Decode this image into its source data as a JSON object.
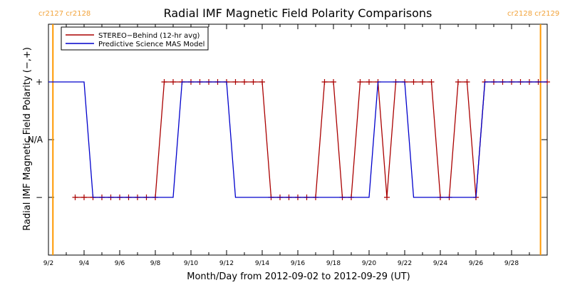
{
  "chart_data": {
    "type": "line",
    "title": "Radial IMF Magnetic Field Polarity Comparisons",
    "xlabel": "Month/Day from 2012-09-02 to 2012-09-29 (UT)",
    "ylabel": "Radial IMF Magnetic Field Polarity (−,+)",
    "x_unit": "days",
    "xlim": [
      "2012-09-02T00:00",
      "2012-09-29T24:00"
    ],
    "x_ticks": [
      {
        "at": "2012-09-02",
        "label": "9/2"
      },
      {
        "at": "2012-09-04",
        "label": "9/4"
      },
      {
        "at": "2012-09-06",
        "label": "9/6"
      },
      {
        "at": "2012-09-08",
        "label": "9/8"
      },
      {
        "at": "2012-09-10",
        "label": "9/10"
      },
      {
        "at": "2012-09-12",
        "label": "9/12"
      },
      {
        "at": "2012-09-14",
        "label": "9/14"
      },
      {
        "at": "2012-09-16",
        "label": "9/16"
      },
      {
        "at": "2012-09-18",
        "label": "9/18"
      },
      {
        "at": "2012-09-20",
        "label": "9/20"
      },
      {
        "at": "2012-09-22",
        "label": "9/22"
      },
      {
        "at": "2012-09-24",
        "label": "9/24"
      },
      {
        "at": "2012-09-26",
        "label": "9/26"
      },
      {
        "at": "2012-09-28",
        "label": "9/28"
      }
    ],
    "y_ticks": [
      {
        "value": 1,
        "label": "+"
      },
      {
        "value": 0,
        "label": "N/A"
      },
      {
        "value": -1,
        "label": "−"
      }
    ],
    "ylim": [
      -2,
      2
    ],
    "legend_position": "top-left",
    "carrington_markers": [
      {
        "at": "2012-09-02T06:00",
        "labels": [
          "cr2127",
          "cr2128"
        ]
      },
      {
        "at": "2012-09-29T15:00",
        "labels": [
          "cr2128",
          "cr2129"
        ]
      }
    ],
    "colors": {
      "stereo": "#aa0000",
      "mas": "#0000cc",
      "markers": "#ff9900",
      "marker_text": "#f2a33a",
      "frame": "#000000"
    },
    "series": [
      {
        "name": "STEREO−Behind (12-hr avg)",
        "color": "#aa0000",
        "marker": "plus",
        "x": [
          "2012-09-03T12:00",
          "2012-09-04T00:00",
          "2012-09-04T12:00",
          "2012-09-05T00:00",
          "2012-09-05T12:00",
          "2012-09-06T00:00",
          "2012-09-06T12:00",
          "2012-09-07T00:00",
          "2012-09-07T12:00",
          "2012-09-08T00:00",
          "2012-09-08T12:00",
          "2012-09-09T00:00",
          "2012-09-09T12:00",
          "2012-09-10T00:00",
          "2012-09-10T12:00",
          "2012-09-11T00:00",
          "2012-09-11T12:00",
          "2012-09-12T00:00",
          "2012-09-12T12:00",
          "2012-09-13T00:00",
          "2012-09-13T12:00",
          "2012-09-14T00:00",
          "2012-09-14T12:00",
          "2012-09-15T00:00",
          "2012-09-15T12:00",
          "2012-09-16T00:00",
          "2012-09-16T12:00",
          "2012-09-17T00:00",
          "2012-09-17T12:00",
          "2012-09-18T00:00",
          "2012-09-18T12:00",
          "2012-09-19T00:00",
          "2012-09-19T12:00",
          "2012-09-20T00:00",
          "2012-09-20T12:00",
          "2012-09-21T00:00",
          "2012-09-21T12:00",
          "2012-09-22T00:00",
          "2012-09-22T12:00",
          "2012-09-23T00:00",
          "2012-09-23T12:00",
          "2012-09-24T00:00",
          "2012-09-24T12:00",
          "2012-09-25T00:00",
          "2012-09-25T12:00",
          "2012-09-26T00:00",
          "2012-09-26T12:00",
          "2012-09-27T00:00",
          "2012-09-27T12:00",
          "2012-09-28T00:00",
          "2012-09-28T12:00",
          "2012-09-29T00:00",
          "2012-09-29T12:00",
          "2012-09-30T00:00"
        ],
        "y": [
          -1,
          -1,
          -1,
          -1,
          -1,
          -1,
          -1,
          -1,
          -1,
          -1,
          1,
          1,
          1,
          1,
          1,
          1,
          1,
          1,
          1,
          1,
          1,
          1,
          -1,
          -1,
          -1,
          -1,
          -1,
          -1,
          1,
          1,
          -1,
          -1,
          1,
          1,
          1,
          -1,
          1,
          1,
          1,
          1,
          1,
          -1,
          -1,
          1,
          1,
          -1,
          1,
          1,
          1,
          1,
          1,
          1,
          1,
          1
        ]
      },
      {
        "name": "Predictive Science MAS Model",
        "color": "#0000cc",
        "marker": "none",
        "x": [
          "2012-09-02T00:00",
          "2012-09-04T00:00",
          "2012-09-04T12:00",
          "2012-09-09T00:00",
          "2012-09-09T12:00",
          "2012-09-12T00:00",
          "2012-09-12T12:00",
          "2012-09-20T00:00",
          "2012-09-20T12:00",
          "2012-09-22T00:00",
          "2012-09-22T12:00",
          "2012-09-26T00:00",
          "2012-09-26T12:00",
          "2012-09-30T00:00"
        ],
        "y": [
          1,
          1,
          -1,
          -1,
          1,
          1,
          -1,
          -1,
          1,
          1,
          -1,
          -1,
          1,
          1
        ]
      }
    ]
  }
}
